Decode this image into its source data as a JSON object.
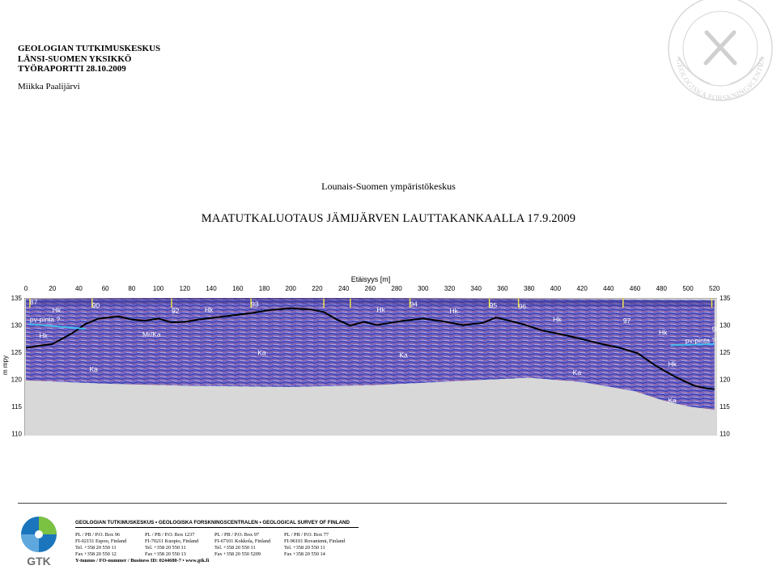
{
  "header": {
    "org": "GEOLOGIAN TUTKIMUSKESKUS",
    "unit": "LÄNSI-SUOMEN YKSIKKÖ",
    "report": "TYÖRAPORTTI 28.10.2009",
    "author": "Miikka Paalijärvi"
  },
  "seal": {
    "text": "GEOLOGISKA FORSKNINGSCENTRALEN"
  },
  "client": "Lounais-Suomen ympäristökeskus",
  "title": "MAATUTKALUOTAUS JÄMIJÄRVEN LAUTTAKANKAALLA 17.9.2009",
  "profile": {
    "x_axis_label": "Etäisyys [m]",
    "y_axis_label": "m mpy",
    "x_ticks": [
      "0",
      "20",
      "40",
      "60",
      "80",
      "100",
      "120",
      "140",
      "160",
      "180",
      "200",
      "220",
      "240",
      "260",
      "280",
      "300",
      "320",
      "340",
      "360",
      "380",
      "400",
      "420",
      "440",
      "460",
      "480",
      "500",
      "520"
    ],
    "y_ticks": [
      "135",
      "130",
      "125",
      "120",
      "115",
      "110"
    ],
    "annotations": [
      {
        "text": "87",
        "x": 3,
        "y": 133.8
      },
      {
        "text": "Hk",
        "x": 20,
        "y": 132.3
      },
      {
        "text": "90",
        "x": 50,
        "y": 133.2
      },
      {
        "text": "pv-pinta ?",
        "x": 3,
        "y": 130.6
      },
      {
        "text": "Hk",
        "x": 10,
        "y": 127.6
      },
      {
        "text": "92",
        "x": 110,
        "y": 132.2
      },
      {
        "text": "Hk",
        "x": 135,
        "y": 132.4
      },
      {
        "text": "93",
        "x": 170,
        "y": 133.4
      },
      {
        "text": "Hk",
        "x": 265,
        "y": 132.4
      },
      {
        "text": "94",
        "x": 290,
        "y": 133.4
      },
      {
        "text": "Hk",
        "x": 320,
        "y": 132.2
      },
      {
        "text": "95",
        "x": 350,
        "y": 133.2
      },
      {
        "text": "96",
        "x": 372,
        "y": 133.0
      },
      {
        "text": "Mr/Ka",
        "x": 88,
        "y": 127.8
      },
      {
        "text": "Ka",
        "x": 175,
        "y": 124.5
      },
      {
        "text": "Ka",
        "x": 282,
        "y": 124.0
      },
      {
        "text": "Ka",
        "x": 48,
        "y": 121.4
      },
      {
        "text": "Hk",
        "x": 398,
        "y": 130.6
      },
      {
        "text": "97",
        "x": 451,
        "y": 130.4
      },
      {
        "text": "Hk",
        "x": 478,
        "y": 128.2
      },
      {
        "text": "98",
        "x": 518,
        "y": 128.8
      },
      {
        "text": "pv-pinta ?",
        "x": 498,
        "y": 126.7
      },
      {
        "text": "Hk",
        "x": 485,
        "y": 122.4
      },
      {
        "text": "Ka",
        "x": 413,
        "y": 120.8
      },
      {
        "text": "Ka",
        "x": 485,
        "y": 115.7
      }
    ]
  },
  "footer": {
    "orgs": "GEOLOGIAN TUTKIMUSKESKUS  •  GEOLOGISKA FORSKNINGSCENTRALEN  •  GEOLOGICAL SURVEY OF FINLAND",
    "offices": [
      {
        "l1": "PL / PB / P.O. Box 96",
        "l2": "FI-02151 Espoo, Finland",
        "l3": "Tel. +358 20 550 11",
        "l4": "Fax +358 20 550 12"
      },
      {
        "l1": "PL / PB / P.O. Box 1237",
        "l2": "FI-70211 Kuopio, Finland",
        "l3": "Tel. +358 20 550 11",
        "l4": "Fax +358 20 550 13"
      },
      {
        "l1": "PL / PB / P.O. Box 97",
        "l2": "FI-67101 Kokkola, Finland",
        "l3": "Tel. +358 20 550 11",
        "l4": "Fax +358 20 550 5209"
      },
      {
        "l1": "PL / PB / P.O. Box 77",
        "l2": "FI-96101 Rovaniemi, Finland",
        "l3": "Tel. +358 20 550 11",
        "l4": "Fax +358 20 550 14"
      }
    ],
    "business_id": "Y-tunnus / FO-nummer / Business ID: 0244680-7  •  www.gtk.fi",
    "logo_text": "GTK"
  },
  "colors": {
    "radar_fill": "#6a6ad8",
    "radar_dark": "#2a2a8a",
    "radar_red": "#b04040",
    "ground_fill": "#d8d8d8",
    "water_table": "#40c0f0",
    "logo_blue": "#1b75bc",
    "logo_green": "#7cc242",
    "logo_grey": "#6d6e70"
  }
}
